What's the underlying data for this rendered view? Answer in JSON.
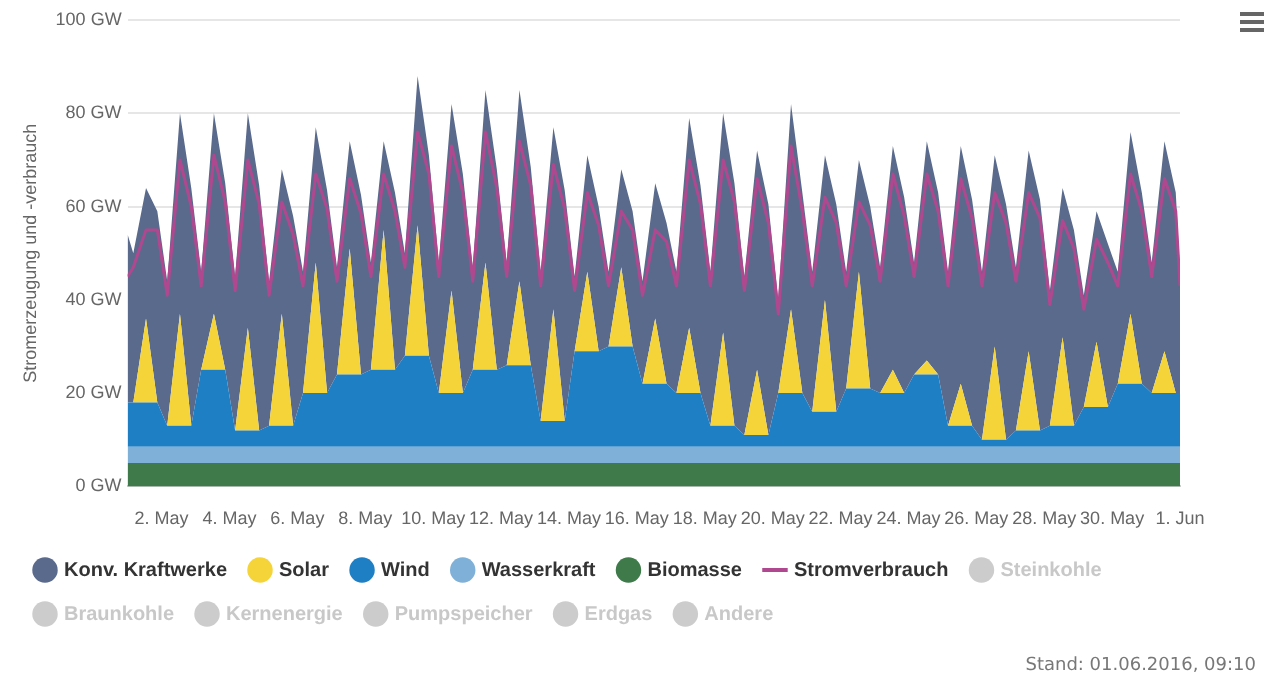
{
  "chart_data": {
    "type": "area",
    "stacked": true,
    "ylabel": "Stromerzeugung und -verbrauch",
    "ylim": [
      0,
      100
    ],
    "yticks": [
      {
        "value": 0,
        "label": "0 GW"
      },
      {
        "value": 20,
        "label": "20 GW"
      },
      {
        "value": 40,
        "label": "40 GW"
      },
      {
        "value": 60,
        "label": "60 GW"
      },
      {
        "value": 80,
        "label": "80 GW"
      },
      {
        "value": 100,
        "label": "100 GW"
      }
    ],
    "xlim": [
      "2016-05-01",
      "2016-06-01"
    ],
    "xticks": [
      {
        "value": "2016-05-02",
        "label": "2. May"
      },
      {
        "value": "2016-05-04",
        "label": "4. May"
      },
      {
        "value": "2016-05-06",
        "label": "6. May"
      },
      {
        "value": "2016-05-08",
        "label": "8. May"
      },
      {
        "value": "2016-05-10",
        "label": "10. May"
      },
      {
        "value": "2016-05-12",
        "label": "12. May"
      },
      {
        "value": "2016-05-14",
        "label": "14. May"
      },
      {
        "value": "2016-05-16",
        "label": "16. May"
      },
      {
        "value": "2016-05-18",
        "label": "18. May"
      },
      {
        "value": "2016-05-20",
        "label": "20. May"
      },
      {
        "value": "2016-05-22",
        "label": "22. May"
      },
      {
        "value": "2016-05-24",
        "label": "24. May"
      },
      {
        "value": "2016-05-26",
        "label": "26. May"
      },
      {
        "value": "2016-05-28",
        "label": "28. May"
      },
      {
        "value": "2016-05-30",
        "label": "30. May"
      },
      {
        "value": "2016-06-01",
        "label": "1. Jun"
      }
    ],
    "grid": "y",
    "legend": "bottom",
    "marker": "none",
    "annotations": [
      "Stand: 01.06.2016, 09:10"
    ],
    "x": [
      "2016-05-01T00:00",
      "2016-05-01T04:00",
      "2016-05-01T13:00",
      "2016-05-01T21:00",
      "2016-05-02T04:00",
      "2016-05-02T13:00",
      "2016-05-02T21:00",
      "2016-05-03T04:00",
      "2016-05-03T13:00",
      "2016-05-03T21:00",
      "2016-05-04T04:00",
      "2016-05-04T13:00",
      "2016-05-04T21:00",
      "2016-05-05T04:00",
      "2016-05-05T13:00",
      "2016-05-05T21:00",
      "2016-05-06T04:00",
      "2016-05-06T13:00",
      "2016-05-06T21:00",
      "2016-05-07T04:00",
      "2016-05-07T13:00",
      "2016-05-07T21:00",
      "2016-05-08T04:00",
      "2016-05-08T13:00",
      "2016-05-08T21:00",
      "2016-05-09T04:00",
      "2016-05-09T13:00",
      "2016-05-09T21:00",
      "2016-05-10T04:00",
      "2016-05-10T13:00",
      "2016-05-10T21:00",
      "2016-05-11T04:00",
      "2016-05-11T13:00",
      "2016-05-11T21:00",
      "2016-05-12T04:00",
      "2016-05-12T13:00",
      "2016-05-12T21:00",
      "2016-05-13T04:00",
      "2016-05-13T13:00",
      "2016-05-13T21:00",
      "2016-05-14T04:00",
      "2016-05-14T13:00",
      "2016-05-14T21:00",
      "2016-05-15T04:00",
      "2016-05-15T13:00",
      "2016-05-15T21:00",
      "2016-05-16T04:00",
      "2016-05-16T13:00",
      "2016-05-16T21:00",
      "2016-05-17T04:00",
      "2016-05-17T13:00",
      "2016-05-17T21:00",
      "2016-05-18T04:00",
      "2016-05-18T13:00",
      "2016-05-18T21:00",
      "2016-05-19T04:00",
      "2016-05-19T13:00",
      "2016-05-19T21:00",
      "2016-05-20T04:00",
      "2016-05-20T13:00",
      "2016-05-20T21:00",
      "2016-05-21T04:00",
      "2016-05-21T13:00",
      "2016-05-21T21:00",
      "2016-05-22T04:00",
      "2016-05-22T13:00",
      "2016-05-22T21:00",
      "2016-05-23T04:00",
      "2016-05-23T13:00",
      "2016-05-23T21:00",
      "2016-05-24T04:00",
      "2016-05-24T13:00",
      "2016-05-24T21:00",
      "2016-05-25T04:00",
      "2016-05-25T13:00",
      "2016-05-25T21:00",
      "2016-05-26T04:00",
      "2016-05-26T13:00",
      "2016-05-26T21:00",
      "2016-05-27T04:00",
      "2016-05-27T13:00",
      "2016-05-27T21:00",
      "2016-05-28T04:00",
      "2016-05-28T13:00",
      "2016-05-28T21:00",
      "2016-05-29T04:00",
      "2016-05-29T13:00",
      "2016-05-29T21:00",
      "2016-05-30T04:00",
      "2016-05-30T13:00",
      "2016-05-30T21:00",
      "2016-05-31T04:00",
      "2016-05-31T13:00",
      "2016-05-31T21:00",
      "2016-06-01T00:00"
    ],
    "series": [
      {
        "name": "Biomasse",
        "color": "#3e7a4a",
        "values": [
          5,
          5,
          5,
          5,
          5,
          5,
          5,
          5,
          5,
          5,
          5,
          5,
          5,
          5,
          5,
          5,
          5,
          5,
          5,
          5,
          5,
          5,
          5,
          5,
          5,
          5,
          5,
          5,
          5,
          5,
          5,
          5,
          5,
          5,
          5,
          5,
          5,
          5,
          5,
          5,
          5,
          5,
          5,
          5,
          5,
          5,
          5,
          5,
          5,
          5,
          5,
          5,
          5,
          5,
          5,
          5,
          5,
          5,
          5,
          5,
          5,
          5,
          5,
          5,
          5,
          5,
          5,
          5,
          5,
          5,
          5,
          5,
          5,
          5,
          5,
          5,
          5,
          5,
          5,
          5,
          5,
          5,
          5,
          5,
          5,
          5,
          5,
          5,
          5,
          5,
          5,
          5,
          5,
          5,
          5
        ]
      },
      {
        "name": "Wasserkraft",
        "color": "#7fb0d8",
        "values": [
          3.5,
          3.5,
          3.5,
          3.5,
          3.5,
          3.5,
          3.5,
          3.5,
          3.5,
          3.5,
          3.5,
          3.5,
          3.5,
          3.5,
          3.5,
          3.5,
          3.5,
          3.5,
          3.5,
          3.5,
          3.5,
          3.5,
          3.5,
          3.5,
          3.5,
          3.5,
          3.5,
          3.5,
          3.5,
          3.5,
          3.5,
          3.5,
          3.5,
          3.5,
          3.5,
          3.5,
          3.5,
          3.5,
          3.5,
          3.5,
          3.5,
          3.5,
          3.5,
          3.5,
          3.5,
          3.5,
          3.5,
          3.5,
          3.5,
          3.5,
          3.5,
          3.5,
          3.5,
          3.5,
          3.5,
          3.5,
          3.5,
          3.5,
          3.5,
          3.5,
          3.5,
          3.5,
          3.5,
          3.5,
          3.5,
          3.5,
          3.5,
          3.5,
          3.5,
          3.5,
          3.5,
          3.5,
          3.5,
          3.5,
          3.5,
          3.5,
          3.5,
          3.5,
          3.5,
          3.5,
          3.5,
          3.5,
          3.5,
          3.5,
          3.5,
          3.5,
          3.5,
          3.5,
          3.5,
          3.5,
          3.5,
          3.5,
          3.5,
          3.5,
          3.5
        ]
      },
      {
        "name": "Wind",
        "color": "#1f7fc4",
        "values": [
          9.5,
          9.5,
          9.5,
          9.5,
          4.5,
          4.5,
          4.5,
          16.5,
          16.5,
          16.5,
          3.5,
          3.5,
          3.5,
          4.5,
          4.5,
          4.5,
          11.5,
          11.5,
          11.5,
          15.5,
          15.5,
          15.5,
          16.5,
          16.5,
          16.5,
          19.5,
          19.5,
          19.5,
          11.5,
          11.5,
          11.5,
          16.5,
          16.5,
          16.5,
          17.5,
          17.5,
          17.5,
          5.5,
          5.5,
          5.5,
          20.5,
          20.5,
          20.5,
          21.5,
          21.5,
          21.5,
          13.5,
          13.5,
          13.5,
          11.5,
          11.5,
          11.5,
          4.5,
          4.5,
          4.5,
          2.5,
          2.5,
          2.5,
          11.5,
          11.5,
          11.5,
          7.5,
          7.5,
          7.5,
          12.5,
          12.5,
          12.5,
          11.5,
          11.5,
          11.5,
          15.5,
          15.5,
          15.5,
          4.5,
          4.5,
          4.5,
          1.5,
          1.5,
          1.5,
          3.5,
          3.5,
          3.5,
          4.5,
          4.5,
          4.5,
          8.5,
          8.5,
          8.5,
          13.5,
          13.5,
          13.5,
          11.5,
          11.5,
          11.5,
          11.5
        ]
      },
      {
        "name": "Solar",
        "color": "#f5d43a",
        "values": [
          0,
          0,
          18,
          0,
          0,
          24,
          0,
          0,
          12,
          0,
          0,
          22,
          0,
          0,
          24,
          0,
          0,
          28,
          0,
          0,
          27,
          0,
          0,
          30,
          0,
          0,
          28,
          0,
          0,
          22,
          0,
          0,
          23,
          0,
          0,
          18,
          0,
          0,
          24,
          0,
          0,
          17,
          0,
          0,
          17,
          0,
          0,
          14,
          0,
          0,
          14,
          0,
          0,
          20,
          0,
          0,
          14,
          0,
          0,
          18,
          0,
          0,
          24,
          0,
          0,
          25,
          0,
          0,
          5,
          0,
          0,
          3,
          0,
          0,
          9,
          0,
          0,
          20,
          0,
          0,
          17,
          0,
          0,
          19,
          0,
          0,
          14,
          0,
          0,
          15,
          0,
          0,
          9,
          0,
          0
        ]
      },
      {
        "name": "Konv. Kraftwerke",
        "color": "#5a6a8c",
        "values": [
          36,
          32,
          28,
          41,
          31,
          43,
          51,
          21,
          43,
          40,
          33,
          46,
          52.5,
          31,
          31,
          45,
          26,
          29,
          43.5,
          23,
          23,
          38.5,
          23,
          19,
          38,
          22,
          32,
          43,
          28,
          40,
          47,
          22,
          37,
          43,
          22,
          41,
          42.5,
          32,
          39,
          49.5,
          16,
          25,
          31,
          16,
          21,
          29,
          22,
          29,
          34.5,
          26,
          45,
          44.5,
          33,
          47,
          52,
          34,
          47,
          49.5,
          20,
          44,
          43,
          30,
          31,
          44.5,
          25,
          24,
          39,
          27,
          48,
          42,
          24,
          47,
          39,
          33,
          51,
          48.5,
          36,
          41,
          50.5,
          35,
          43,
          49.5,
          29,
          32,
          42,
          24,
          28,
          35,
          24,
          39,
          41,
          28,
          45,
          43,
          26
        ]
      },
      {
        "name": "Stromverbrauch",
        "type": "line",
        "color": "#b0488f",
        "values": [
          45,
          47,
          55,
          55,
          41,
          70,
          60,
          43,
          71,
          61,
          42,
          70,
          60.5,
          41,
          61,
          54,
          43,
          67,
          59.5,
          44,
          66,
          58.5,
          45,
          67,
          59,
          47,
          76,
          67,
          45,
          73,
          63,
          44,
          76,
          64,
          45,
          74,
          64.5,
          43,
          69,
          59.5,
          42,
          63,
          56,
          43,
          59,
          55,
          41,
          55,
          52.5,
          43,
          70,
          60.5,
          43,
          70,
          61,
          42,
          66,
          56.5,
          37,
          73,
          59,
          43,
          62,
          56.5,
          43,
          61,
          56,
          44,
          67,
          58,
          45,
          67,
          59,
          43,
          66,
          57.5,
          43,
          63,
          56.5,
          44,
          63,
          57.5,
          39,
          57,
          51,
          38,
          53,
          48,
          43,
          67,
          59,
          45,
          66,
          59,
          43
        ]
      },
      {
        "name": "Steinkohle",
        "color": "#cccccc",
        "values": [
          null,
          null,
          null,
          null,
          null,
          null,
          null,
          null,
          null,
          null,
          null,
          null,
          null,
          null,
          null,
          null,
          null,
          null,
          null,
          null,
          null,
          null,
          null,
          null,
          null,
          null,
          null,
          null,
          null,
          null,
          null,
          null,
          null,
          null,
          null,
          null,
          null,
          null,
          null,
          null,
          null,
          null,
          null,
          null,
          null,
          null,
          null,
          null,
          null,
          null,
          null,
          null,
          null,
          null,
          null,
          null,
          null,
          null,
          null,
          null,
          null,
          null,
          null,
          null,
          null,
          null,
          null,
          null,
          null,
          null,
          null,
          null,
          null,
          null,
          null,
          null,
          null,
          null,
          null,
          null,
          null,
          null,
          null,
          null,
          null,
          null,
          null,
          null,
          null,
          null,
          null,
          null,
          null,
          null,
          null
        ]
      },
      {
        "name": "Braunkohle",
        "color": "#cccccc",
        "values": [
          null,
          null,
          null,
          null,
          null,
          null,
          null,
          null,
          null,
          null,
          null,
          null,
          null,
          null,
          null,
          null,
          null,
          null,
          null,
          null,
          null,
          null,
          null,
          null,
          null,
          null,
          null,
          null,
          null,
          null,
          null,
          null,
          null,
          null,
          null,
          null,
          null,
          null,
          null,
          null,
          null,
          null,
          null,
          null,
          null,
          null,
          null,
          null,
          null,
          null,
          null,
          null,
          null,
          null,
          null,
          null,
          null,
          null,
          null,
          null,
          null,
          null,
          null,
          null,
          null,
          null,
          null,
          null,
          null,
          null,
          null,
          null,
          null,
          null,
          null,
          null,
          null,
          null,
          null,
          null,
          null,
          null,
          null,
          null,
          null,
          null,
          null,
          null,
          null,
          null,
          null,
          null,
          null,
          null,
          null
        ]
      },
      {
        "name": "Kernenergie",
        "color": "#cccccc",
        "values": [
          null,
          null,
          null,
          null,
          null,
          null,
          null,
          null,
          null,
          null,
          null,
          null,
          null,
          null,
          null,
          null,
          null,
          null,
          null,
          null,
          null,
          null,
          null,
          null,
          null,
          null,
          null,
          null,
          null,
          null,
          null,
          null,
          null,
          null,
          null,
          null,
          null,
          null,
          null,
          null,
          null,
          null,
          null,
          null,
          null,
          null,
          null,
          null,
          null,
          null,
          null,
          null,
          null,
          null,
          null,
          null,
          null,
          null,
          null,
          null,
          null,
          null,
          null,
          null,
          null,
          null,
          null,
          null,
          null,
          null,
          null,
          null,
          null,
          null,
          null,
          null,
          null,
          null,
          null,
          null,
          null,
          null,
          null,
          null,
          null,
          null,
          null,
          null,
          null,
          null,
          null,
          null,
          null,
          null,
          null
        ]
      },
      {
        "name": "Pumpspeicher",
        "color": "#cccccc",
        "values": [
          null,
          null,
          null,
          null,
          null,
          null,
          null,
          null,
          null,
          null,
          null,
          null,
          null,
          null,
          null,
          null,
          null,
          null,
          null,
          null,
          null,
          null,
          null,
          null,
          null,
          null,
          null,
          null,
          null,
          null,
          null,
          null,
          null,
          null,
          null,
          null,
          null,
          null,
          null,
          null,
          null,
          null,
          null,
          null,
          null,
          null,
          null,
          null,
          null,
          null,
          null,
          null,
          null,
          null,
          null,
          null,
          null,
          null,
          null,
          null,
          null,
          null,
          null,
          null,
          null,
          null,
          null,
          null,
          null,
          null,
          null,
          null,
          null,
          null,
          null,
          null,
          null,
          null,
          null,
          null,
          null,
          null,
          null,
          null,
          null,
          null,
          null,
          null,
          null,
          null,
          null,
          null,
          null,
          null,
          null
        ]
      },
      {
        "name": "Erdgas",
        "color": "#cccccc",
        "values": [
          null,
          null,
          null,
          null,
          null,
          null,
          null,
          null,
          null,
          null,
          null,
          null,
          null,
          null,
          null,
          null,
          null,
          null,
          null,
          null,
          null,
          null,
          null,
          null,
          null,
          null,
          null,
          null,
          null,
          null,
          null,
          null,
          null,
          null,
          null,
          null,
          null,
          null,
          null,
          null,
          null,
          null,
          null,
          null,
          null,
          null,
          null,
          null,
          null,
          null,
          null,
          null,
          null,
          null,
          null,
          null,
          null,
          null,
          null,
          null,
          null,
          null,
          null,
          null,
          null,
          null,
          null,
          null,
          null,
          null,
          null,
          null,
          null,
          null,
          null,
          null,
          null,
          null,
          null,
          null,
          null,
          null,
          null,
          null,
          null,
          null,
          null,
          null,
          null,
          null,
          null,
          null,
          null,
          null,
          null
        ]
      },
      {
        "name": "Andere",
        "color": "#cccccc",
        "values": [
          null,
          null,
          null,
          null,
          null,
          null,
          null,
          null,
          null,
          null,
          null,
          null,
          null,
          null,
          null,
          null,
          null,
          null,
          null,
          null,
          null,
          null,
          null,
          null,
          null,
          null,
          null,
          null,
          null,
          null,
          null,
          null,
          null,
          null,
          null,
          null,
          null,
          null,
          null,
          null,
          null,
          null,
          null,
          null,
          null,
          null,
          null,
          null,
          null,
          null,
          null,
          null,
          null,
          null,
          null,
          null,
          null,
          null,
          null,
          null,
          null,
          null,
          null,
          null,
          null,
          null,
          null,
          null,
          null,
          null,
          null,
          null,
          null,
          null,
          null,
          null,
          null,
          null,
          null,
          null,
          null,
          null,
          null,
          null,
          null,
          null,
          null,
          null,
          null,
          null,
          null,
          null,
          null,
          null,
          null
        ]
      }
    ]
  }
}
